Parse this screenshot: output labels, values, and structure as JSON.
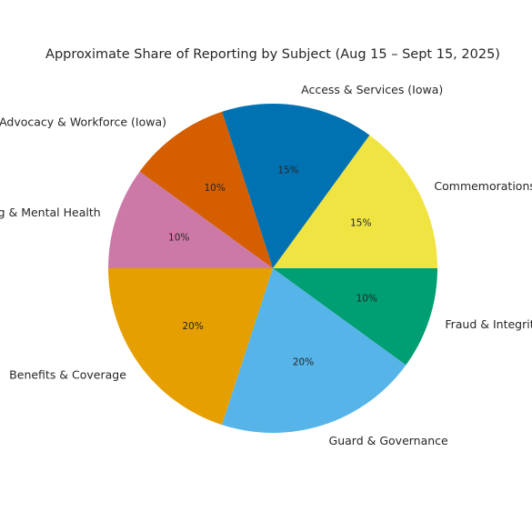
{
  "chart_data": {
    "type": "pie",
    "title": "Approximate Share of Reporting by Subject (Aug 15 – Sept 15, 2025)",
    "start_angle_deg": 0,
    "direction": "counterclockwise",
    "slices": [
      {
        "label": "Commemorations",
        "value": 15,
        "pct_label": "15%",
        "color": "#F0E442"
      },
      {
        "label": "Access & Services (Iowa)",
        "value": 15,
        "pct_label": "15%",
        "color": "#0072B2"
      },
      {
        "label": "Advocacy & Workforce (Iowa)",
        "value": 10,
        "pct_label": "10%",
        "color": "#D55E00"
      },
      {
        "label": "Well-Being & Mental Health",
        "value": 10,
        "pct_label": "10%",
        "color": "#CC79A7"
      },
      {
        "label": "Benefits & Coverage",
        "value": 20,
        "pct_label": "20%",
        "color": "#E69F00"
      },
      {
        "label": "Guard & Governance",
        "value": 20,
        "pct_label": "20%",
        "color": "#56B4E9"
      },
      {
        "label": "Fraud & Integrity",
        "value": 10,
        "pct_label": "10%",
        "color": "#009E73"
      }
    ]
  }
}
